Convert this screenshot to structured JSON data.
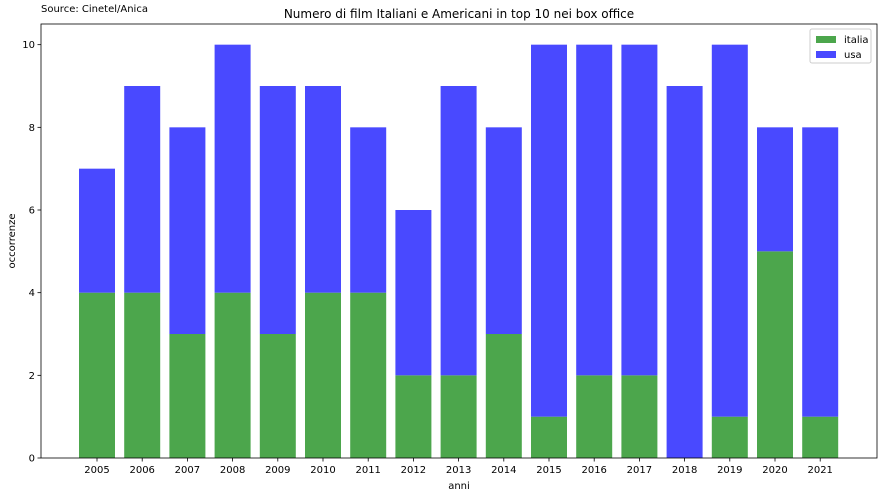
{
  "source_note": "Source: Cinetel/Anica",
  "chart_data": {
    "type": "bar",
    "stacked": true,
    "title": "Numero di film Italiani e Americani in top 10 nei box office",
    "xlabel": "anni",
    "ylabel": "occorrenze",
    "categories": [
      "2005",
      "2006",
      "2007",
      "2008",
      "2009",
      "2010",
      "2011",
      "2012",
      "2013",
      "2014",
      "2015",
      "2016",
      "2017",
      "2018",
      "2019",
      "2020",
      "2021"
    ],
    "series": [
      {
        "name": "italia",
        "color": "#4ca64c",
        "values": [
          4,
          4,
          3,
          4,
          3,
          4,
          4,
          2,
          2,
          3,
          1,
          2,
          2,
          0,
          1,
          5,
          1
        ]
      },
      {
        "name": "usa",
        "color": "#4949ff",
        "values": [
          3,
          5,
          5,
          6,
          6,
          5,
          4,
          4,
          7,
          5,
          9,
          8,
          8,
          9,
          9,
          3,
          7
        ]
      }
    ],
    "ylim": [
      0,
      10.5
    ],
    "yticks": [
      0,
      2,
      4,
      6,
      8,
      10
    ],
    "grid": false,
    "legend_position": "top-right"
  }
}
